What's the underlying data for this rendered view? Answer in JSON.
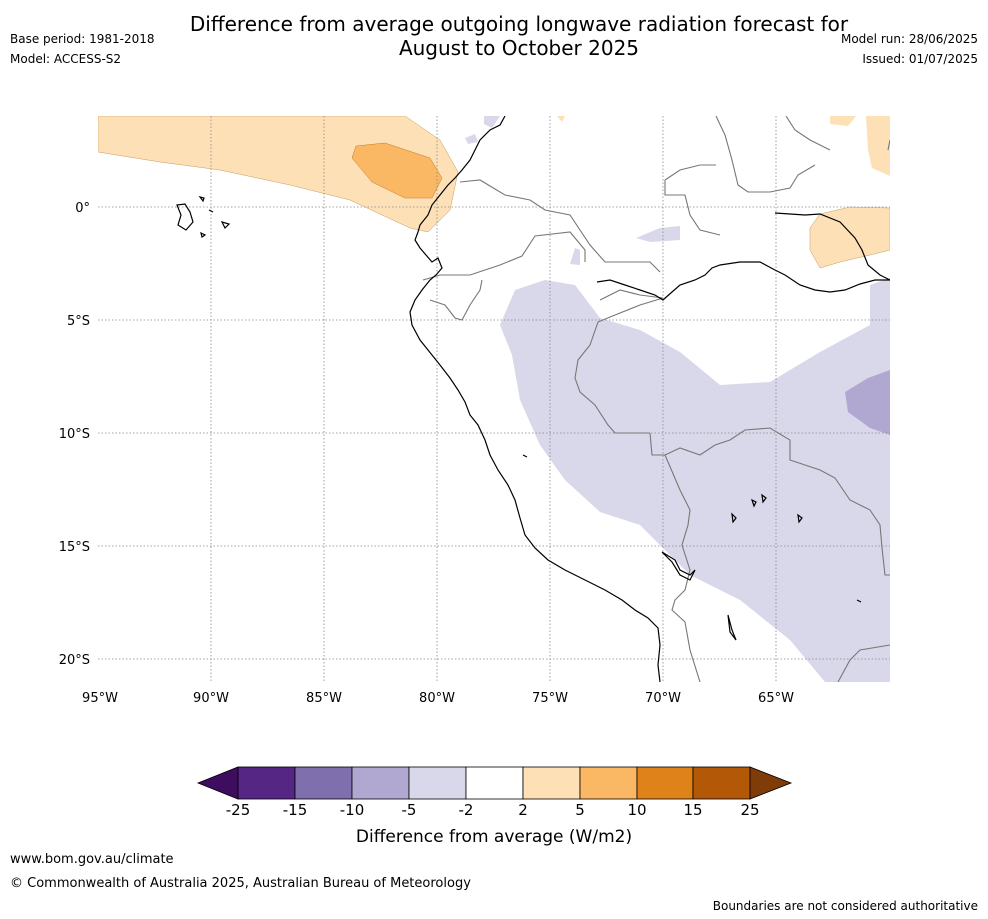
{
  "header": {
    "title_line1": "Difference from average outgoing longwave radiation forecast for",
    "title_line2": "August to October 2025",
    "base_period": "Base period: 1981-2018",
    "model": "Model: ACCESS-S2",
    "model_run": "Model run: 28/06/2025",
    "issued": "Issued: 01/07/2025"
  },
  "map": {
    "lat_labels": [
      "0°",
      "5°S",
      "10°S",
      "15°S",
      "20°S"
    ],
    "lon_labels": [
      "95°W",
      "90°W",
      "85°W",
      "80°W",
      "75°W",
      "70°W",
      "65°W"
    ],
    "region": "Western South America (Ecuador, Peru, Bolivia, western Brazil)",
    "anomaly_areas": [
      {
        "class": "2 to 5",
        "location": "Eastern equatorial Pacific off Ecuador"
      },
      {
        "class": "5 to 10",
        "location": "Small core off coast of Ecuador"
      },
      {
        "class": "2 to 5",
        "location": "Northern Brazil near equator"
      },
      {
        "class": "-5 to -2",
        "location": "Western Amazon, Peru interior, Bolivia"
      },
      {
        "class": "-10 to -5",
        "location": "Western Brazil near 9°S"
      }
    ]
  },
  "colorbar": {
    "label": "Difference from average (W/m2)",
    "ticks": [
      "-25",
      "-15",
      "-10",
      "-5",
      "-2",
      "2",
      "5",
      "10",
      "15",
      "25"
    ],
    "colors": [
      "#3f0d5f",
      "#552683",
      "#7f6fad",
      "#b1a8d2",
      "#d8d8ea",
      "#ffffff",
      "#fde0b6",
      "#fbb864",
      "#e0821a",
      "#b35806",
      "#7f3b08"
    ]
  },
  "footer": {
    "website": "www.bom.gov.au/climate",
    "copyright": "© Commonwealth of Australia 2025, Australian Bureau of Meteorology",
    "disclaimer": "Boundaries are not considered authoritative"
  }
}
